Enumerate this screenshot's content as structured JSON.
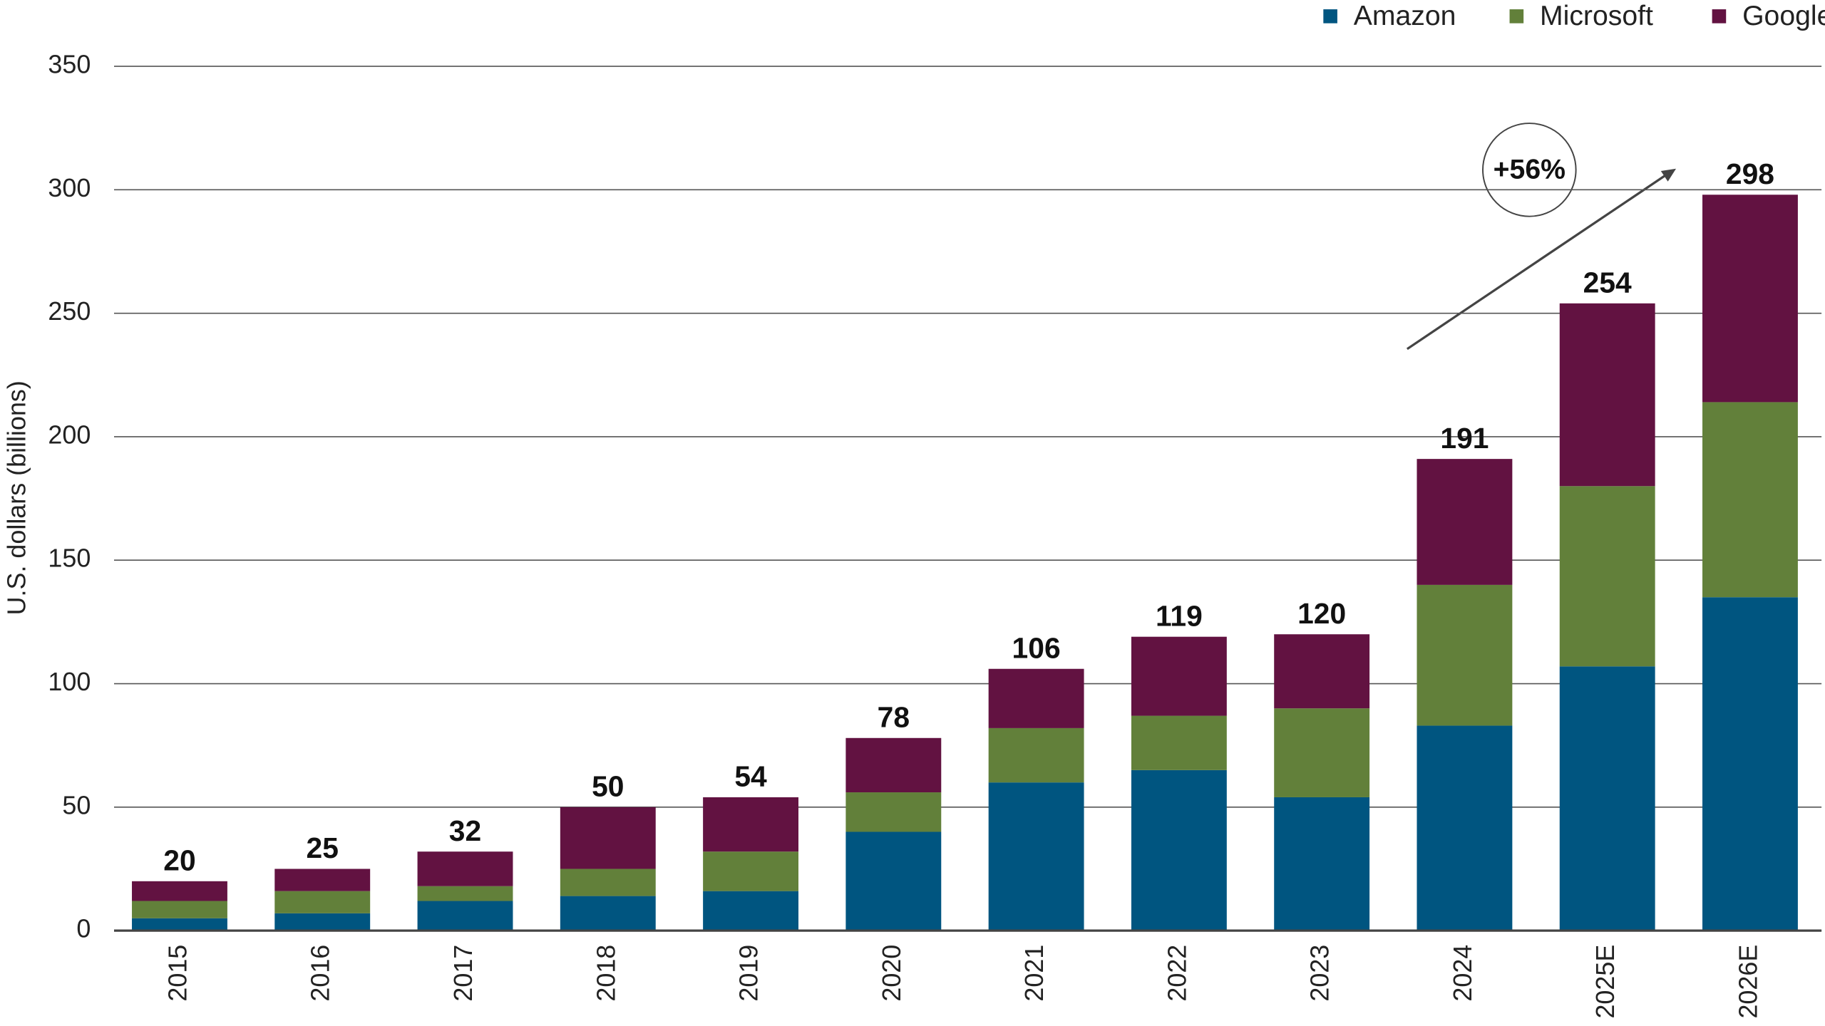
{
  "chart_data": {
    "type": "stacked_bar",
    "y_label": "U.S. dollars (billions)",
    "categories": [
      "2015",
      "2016",
      "2017",
      "2018",
      "2019",
      "2020",
      "2021",
      "2022",
      "2023",
      "2024",
      "2025E",
      "2026E"
    ],
    "series": [
      {
        "name": "Amazon",
        "color": "#005580",
        "values": [
          5,
          7,
          12,
          14,
          16,
          40,
          60,
          65,
          54,
          83,
          107,
          135
        ]
      },
      {
        "name": "Microsoft",
        "color": "#62803a",
        "values": [
          7,
          9,
          6,
          11,
          16,
          16,
          22,
          22,
          36,
          57,
          73,
          79
        ]
      },
      {
        "name": "Google",
        "color": "#621241",
        "values": [
          8,
          9,
          14,
          25,
          22,
          22,
          24,
          32,
          30,
          51,
          74,
          84
        ]
      }
    ],
    "totals": [
      20,
      25,
      32,
      50,
      54,
      78,
      106,
      119,
      120,
      191,
      254,
      298
    ],
    "annotation": "+56%",
    "ylim": [
      0,
      350
    ],
    "yticks": [
      0,
      50,
      100,
      150,
      200,
      250,
      300,
      350
    ],
    "grid": true,
    "legend": "top-right"
  }
}
